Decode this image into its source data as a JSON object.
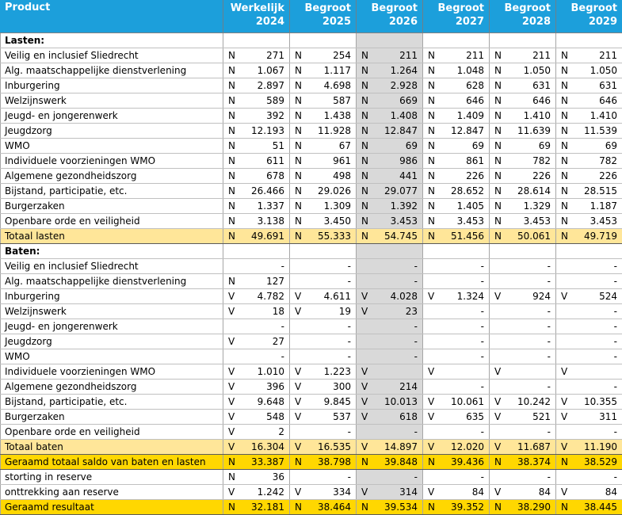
{
  "header": {
    "product_label": "Product",
    "columns": [
      {
        "line1": "Werkelijk",
        "line2": "2024"
      },
      {
        "line1": "Begroot",
        "line2": "2025"
      },
      {
        "line1": "Begroot",
        "line2": "2026"
      },
      {
        "line1": "Begroot",
        "line2": "2027"
      },
      {
        "line1": "Begroot",
        "line2": "2028"
      },
      {
        "line1": "Begroot",
        "line2": "2029"
      }
    ]
  },
  "highlight_column_index": 2,
  "colors": {
    "header_bg": "#1C9FDB",
    "header_text": "#FFFFFF",
    "subtotal_row_bg": "#FFE699",
    "total_row_bg": "#FFD700",
    "highlight_column_bg": "#D9D9D9"
  },
  "rows": [
    {
      "label": "Lasten:",
      "type": "section"
    },
    {
      "label": "Veilig en inclusief Sliedrecht",
      "cells": [
        [
          "N",
          "271"
        ],
        [
          "N",
          "254"
        ],
        [
          "N",
          "211"
        ],
        [
          "N",
          "211"
        ],
        [
          "N",
          "211"
        ],
        [
          "N",
          "211"
        ]
      ]
    },
    {
      "label": "Alg. maatschappelijke dienstverlening",
      "cells": [
        [
          "N",
          "1.067"
        ],
        [
          "N",
          "1.117"
        ],
        [
          "N",
          "1.264"
        ],
        [
          "N",
          "1.048"
        ],
        [
          "N",
          "1.050"
        ],
        [
          "N",
          "1.050"
        ]
      ]
    },
    {
      "label": "Inburgering",
      "cells": [
        [
          "N",
          "2.897"
        ],
        [
          "N",
          "4.698"
        ],
        [
          "N",
          "2.928"
        ],
        [
          "N",
          "628"
        ],
        [
          "N",
          "631"
        ],
        [
          "N",
          "631"
        ]
      ]
    },
    {
      "label": "Welzijnswerk",
      "cells": [
        [
          "N",
          "589"
        ],
        [
          "N",
          "587"
        ],
        [
          "N",
          "669"
        ],
        [
          "N",
          "646"
        ],
        [
          "N",
          "646"
        ],
        [
          "N",
          "646"
        ]
      ]
    },
    {
      "label": "Jeugd- en jongerenwerk",
      "cells": [
        [
          "N",
          "392"
        ],
        [
          "N",
          "1.438"
        ],
        [
          "N",
          "1.408"
        ],
        [
          "N",
          "1.409"
        ],
        [
          "N",
          "1.410"
        ],
        [
          "N",
          "1.410"
        ]
      ]
    },
    {
      "label": "Jeugdzorg",
      "cells": [
        [
          "N",
          "12.193"
        ],
        [
          "N",
          "11.928"
        ],
        [
          "N",
          "12.847"
        ],
        [
          "N",
          "12.847"
        ],
        [
          "N",
          "11.639"
        ],
        [
          "N",
          "11.539"
        ]
      ]
    },
    {
      "label": "WMO",
      "cells": [
        [
          "N",
          "51"
        ],
        [
          "N",
          "67"
        ],
        [
          "N",
          "69"
        ],
        [
          "N",
          "69"
        ],
        [
          "N",
          "69"
        ],
        [
          "N",
          "69"
        ]
      ]
    },
    {
      "label": "Individuele voorzieningen WMO",
      "cells": [
        [
          "N",
          "611"
        ],
        [
          "N",
          "961"
        ],
        [
          "N",
          "986"
        ],
        [
          "N",
          "861"
        ],
        [
          "N",
          "782"
        ],
        [
          "N",
          "782"
        ]
      ]
    },
    {
      "label": "Algemene gezondheidszorg",
      "cells": [
        [
          "N",
          "678"
        ],
        [
          "N",
          "498"
        ],
        [
          "N",
          "441"
        ],
        [
          "N",
          "226"
        ],
        [
          "N",
          "226"
        ],
        [
          "N",
          "226"
        ]
      ]
    },
    {
      "label": "Bijstand, participatie, etc.",
      "cells": [
        [
          "N",
          "26.466"
        ],
        [
          "N",
          "29.026"
        ],
        [
          "N",
          "29.077"
        ],
        [
          "N",
          "28.652"
        ],
        [
          "N",
          "28.614"
        ],
        [
          "N",
          "28.515"
        ]
      ]
    },
    {
      "label": "Burgerzaken",
      "cells": [
        [
          "N",
          "1.337"
        ],
        [
          "N",
          "1.309"
        ],
        [
          "N",
          "1.392"
        ],
        [
          "N",
          "1.405"
        ],
        [
          "N",
          "1.329"
        ],
        [
          "N",
          "1.187"
        ]
      ]
    },
    {
      "label": "Openbare orde en veiligheid",
      "cells": [
        [
          "N",
          "3.138"
        ],
        [
          "N",
          "3.450"
        ],
        [
          "N",
          "3.453"
        ],
        [
          "N",
          "3.453"
        ],
        [
          "N",
          "3.453"
        ],
        [
          "N",
          "3.453"
        ]
      ]
    },
    {
      "label": "Totaal lasten",
      "type": "subtotal",
      "cells": [
        [
          "N",
          "49.691"
        ],
        [
          "N",
          "55.333"
        ],
        [
          "N",
          "54.745"
        ],
        [
          "N",
          "51.456"
        ],
        [
          "N",
          "50.061"
        ],
        [
          "N",
          "49.719"
        ]
      ]
    },
    {
      "label": "Baten:",
      "type": "section"
    },
    {
      "label": "Veilig en inclusief Sliedrecht",
      "cells": [
        [
          "",
          "-"
        ],
        [
          "",
          "-"
        ],
        [
          "",
          "-"
        ],
        [
          "",
          "-"
        ],
        [
          "",
          "-"
        ],
        [
          "",
          "-"
        ]
      ]
    },
    {
      "label": "Alg. maatschappelijke dienstverlening",
      "cells": [
        [
          "N",
          "127"
        ],
        [
          "",
          "-"
        ],
        [
          "",
          "-"
        ],
        [
          "",
          "-"
        ],
        [
          "",
          "-"
        ],
        [
          "",
          "-"
        ]
      ]
    },
    {
      "label": "Inburgering",
      "cells": [
        [
          "V",
          "4.782"
        ],
        [
          "V",
          "4.611"
        ],
        [
          "V",
          "4.028"
        ],
        [
          "V",
          "1.324"
        ],
        [
          "V",
          "924"
        ],
        [
          "V",
          "524"
        ]
      ]
    },
    {
      "label": "Welzijnswerk",
      "cells": [
        [
          "V",
          "18"
        ],
        [
          "V",
          "19"
        ],
        [
          "V",
          "23"
        ],
        [
          "",
          "-"
        ],
        [
          "",
          "-"
        ],
        [
          "",
          "-"
        ]
      ]
    },
    {
      "label": "Jeugd- en jongerenwerk",
      "cells": [
        [
          "",
          "-"
        ],
        [
          "",
          "-"
        ],
        [
          "",
          "-"
        ],
        [
          "",
          "-"
        ],
        [
          "",
          "-"
        ],
        [
          "",
          "-"
        ]
      ]
    },
    {
      "label": "Jeugdzorg",
      "cells": [
        [
          "V",
          "27"
        ],
        [
          "",
          "-"
        ],
        [
          "",
          "-"
        ],
        [
          "",
          "-"
        ],
        [
          "",
          "-"
        ],
        [
          "",
          "-"
        ]
      ]
    },
    {
      "label": "WMO",
      "cells": [
        [
          "",
          "-"
        ],
        [
          "",
          "-"
        ],
        [
          "",
          "-"
        ],
        [
          "",
          "-"
        ],
        [
          "",
          "-"
        ],
        [
          "",
          "-"
        ]
      ]
    },
    {
      "label": "Individuele voorzieningen WMO",
      "cells": [
        [
          "V",
          "1.010"
        ],
        [
          "V",
          "1.223"
        ],
        [
          "V",
          ""
        ],
        [
          "V",
          ""
        ],
        [
          "V",
          ""
        ],
        [
          "V",
          ""
        ]
      ]
    },
    {
      "label": "Algemene gezondheidszorg",
      "cells": [
        [
          "V",
          "396"
        ],
        [
          "V",
          "300"
        ],
        [
          "V",
          "214"
        ],
        [
          "",
          "-"
        ],
        [
          "",
          "-"
        ],
        [
          "",
          "-"
        ]
      ]
    },
    {
      "label": "Bijstand, participatie, etc.",
      "cells": [
        [
          "V",
          "9.648"
        ],
        [
          "V",
          "9.845"
        ],
        [
          "V",
          "10.013"
        ],
        [
          "V",
          "10.061"
        ],
        [
          "V",
          "10.242"
        ],
        [
          "V",
          "10.355"
        ]
      ]
    },
    {
      "label": "Burgerzaken",
      "cells": [
        [
          "V",
          "548"
        ],
        [
          "V",
          "537"
        ],
        [
          "V",
          "618"
        ],
        [
          "V",
          "635"
        ],
        [
          "V",
          "521"
        ],
        [
          "V",
          "311"
        ]
      ]
    },
    {
      "label": "Openbare orde en veiligheid",
      "cells": [
        [
          "V",
          "2"
        ],
        [
          "",
          "-"
        ],
        [
          "",
          "-"
        ],
        [
          "",
          "-"
        ],
        [
          "",
          "-"
        ],
        [
          "",
          "-"
        ]
      ]
    },
    {
      "label": "Totaal baten",
      "type": "subtotal",
      "cells": [
        [
          "V",
          "16.304"
        ],
        [
          "V",
          "16.535"
        ],
        [
          "V",
          "14.897"
        ],
        [
          "V",
          "12.020"
        ],
        [
          "V",
          "11.687"
        ],
        [
          "V",
          "11.190"
        ]
      ]
    },
    {
      "label": "Geraamd totaal saldo van baten en lasten",
      "type": "total",
      "cells": [
        [
          "N",
          "33.387"
        ],
        [
          "N",
          "38.798"
        ],
        [
          "N",
          "39.848"
        ],
        [
          "N",
          "39.436"
        ],
        [
          "N",
          "38.374"
        ],
        [
          "N",
          "38.529"
        ]
      ]
    },
    {
      "label": "storting in reserve",
      "cells": [
        [
          "N",
          "36"
        ],
        [
          "",
          "-"
        ],
        [
          "",
          "-"
        ],
        [
          "",
          "-"
        ],
        [
          "",
          "-"
        ],
        [
          "",
          "-"
        ]
      ]
    },
    {
      "label": "onttrekking aan reserve",
      "cells": [
        [
          "V",
          "1.242"
        ],
        [
          "V",
          "334"
        ],
        [
          "V",
          "314"
        ],
        [
          "V",
          "84"
        ],
        [
          "V",
          "84"
        ],
        [
          "V",
          "84"
        ]
      ]
    },
    {
      "label": "Geraamd resultaat",
      "type": "total",
      "cells": [
        [
          "N",
          "32.181"
        ],
        [
          "N",
          "38.464"
        ],
        [
          "N",
          "39.534"
        ],
        [
          "N",
          "39.352"
        ],
        [
          "N",
          "38.290"
        ],
        [
          "N",
          "38.445"
        ]
      ]
    }
  ]
}
